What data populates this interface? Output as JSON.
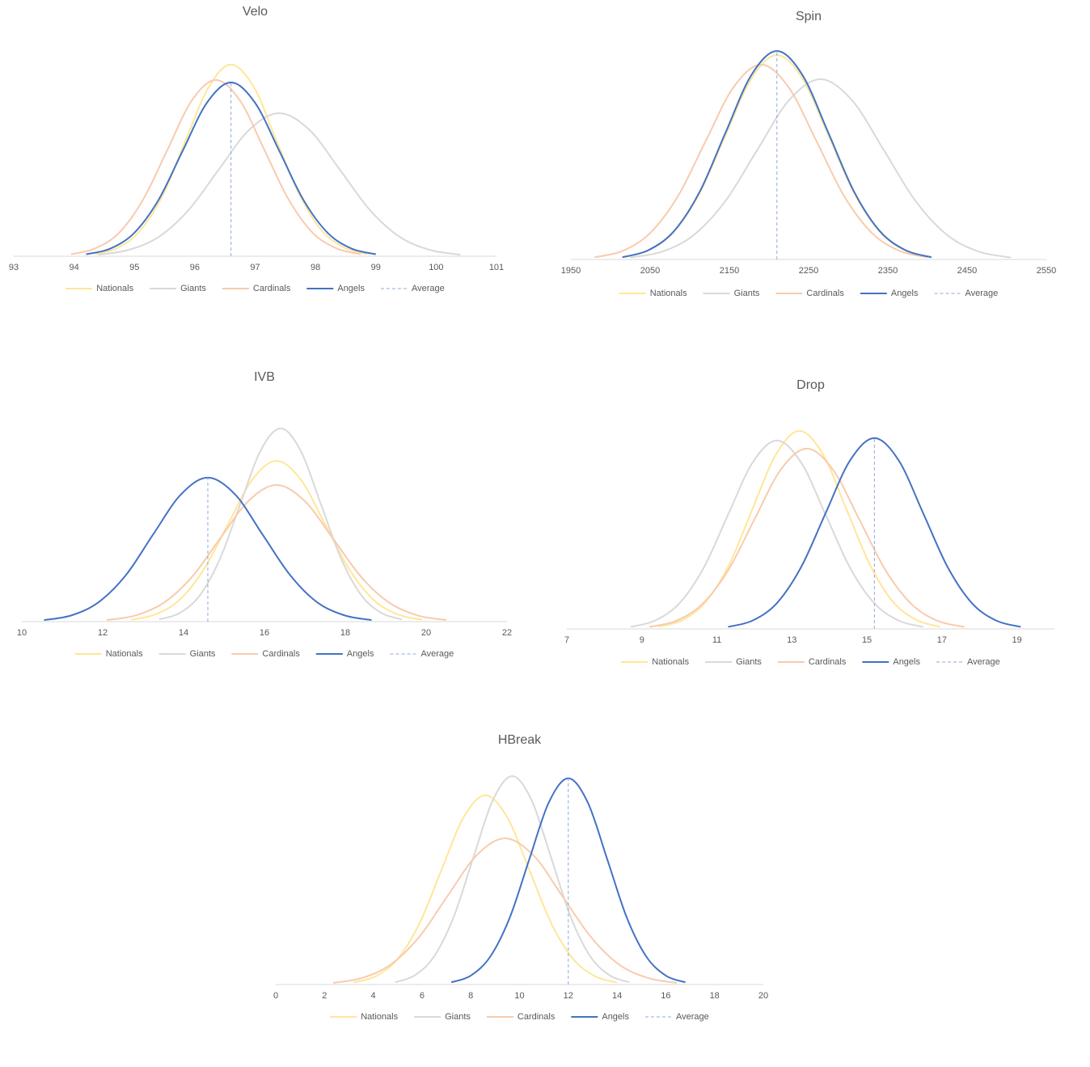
{
  "chart_data": [
    {
      "type": "line",
      "title": "Velo",
      "xlim": [
        93,
        101
      ],
      "xticks": [
        93,
        94,
        95,
        96,
        97,
        98,
        99,
        100,
        101
      ],
      "ylim": [
        0,
        100
      ],
      "series": [
        {
          "name": "Nationals",
          "color": "#ffe699",
          "x": [
            94.35,
            94.73,
            95.1,
            95.48,
            95.85,
            96.23,
            96.6,
            96.98,
            97.35,
            97.73,
            98.1,
            98.48,
            98.85
          ],
          "values": [
            1.0,
            3.8,
            11.6,
            27.8,
            51.9,
            75.5,
            85.6,
            75.5,
            51.9,
            27.8,
            11.6,
            3.8,
            1.0
          ]
        },
        {
          "name": "Giants",
          "color": "#d9d9d9",
          "x": [
            94.4,
            94.9,
            95.4,
            95.9,
            96.4,
            96.9,
            97.4,
            97.9,
            98.4,
            98.9,
            99.4,
            99.9,
            100.4
          ],
          "values": [
            0.7,
            2.8,
            8.6,
            20.7,
            38.8,
            56.4,
            63.9,
            56.4,
            38.8,
            20.7,
            8.6,
            2.8,
            0.7
          ]
        },
        {
          "name": "Cardinals",
          "color": "#f8cbad",
          "x": [
            93.95,
            94.35,
            94.75,
            95.15,
            95.55,
            95.95,
            96.35,
            96.75,
            97.15,
            97.55,
            97.95,
            98.35,
            98.75
          ],
          "values": [
            0.9,
            3.5,
            10.6,
            25.6,
            47.7,
            69.5,
            78.7,
            69.5,
            47.7,
            25.6,
            10.6,
            3.5,
            0.9
          ]
        },
        {
          "name": "Angels",
          "color": "#4472c4",
          "x": [
            94.2,
            94.6,
            95,
            95.4,
            95.8,
            96.2,
            96.6,
            97,
            97.4,
            97.8,
            98.2,
            98.6,
            99
          ],
          "values": [
            0.9,
            3.4,
            10.5,
            25.2,
            47.1,
            68.5,
            77.6,
            68.5,
            47.1,
            25.2,
            10.5,
            3.4,
            0.9
          ]
        },
        {
          "name": "Average",
          "color": "#8faadc",
          "dash": true,
          "x": [
            96.6,
            96.6
          ],
          "values": [
            0,
            77.6
          ]
        }
      ]
    },
    {
      "type": "line",
      "title": "Spin",
      "xlim": [
        1950,
        2550
      ],
      "xticks": [
        1950,
        2050,
        2150,
        2250,
        2350,
        2450,
        2550
      ],
      "ylim": [
        0,
        100
      ],
      "series": [
        {
          "name": "Nationals",
          "color": "#ffe699",
          "x": [
            2015,
            2047.5,
            2080,
            2112.5,
            2145,
            2177.5,
            2210,
            2242.5,
            2275,
            2307.5,
            2340,
            2372.5,
            2405
          ],
          "values": [
            1.0,
            4.0,
            12.4,
            29.6,
            55.4,
            80.6,
            91.3,
            80.6,
            55.4,
            29.6,
            12.4,
            4.0,
            1.0
          ]
        },
        {
          "name": "Giants",
          "color": "#d9d9d9",
          "x": [
            2025,
            2065,
            2105,
            2145,
            2185,
            2225,
            2265,
            2305,
            2345,
            2385,
            2425,
            2465,
            2505
          ],
          "values": [
            0.9,
            3.5,
            10.9,
            26.1,
            48.8,
            71.0,
            80.5,
            71.0,
            48.8,
            26.1,
            10.9,
            3.5,
            0.9
          ]
        },
        {
          "name": "Cardinals",
          "color": "#f8cbad",
          "x": [
            1980,
            2015,
            2050,
            2085,
            2120,
            2155,
            2190,
            2225,
            2260,
            2295,
            2330,
            2365,
            2400
          ],
          "values": [
            1.0,
            3.8,
            11.8,
            28.2,
            52.8,
            76.8,
            87,
            76.8,
            52.8,
            28.2,
            11.8,
            3.8,
            1.0
          ]
        },
        {
          "name": "Angels",
          "color": "#4472c4",
          "x": [
            2015,
            2047.5,
            2080,
            2112.5,
            2145,
            2177.5,
            2210,
            2242.5,
            2275,
            2307.5,
            2340,
            2372.5,
            2405
          ],
          "values": [
            1.0,
            4.1,
            12.6,
            30.2,
            56.5,
            82.2,
            93.1,
            82.2,
            56.5,
            30.2,
            12.6,
            4.1,
            1.0
          ]
        },
        {
          "name": "Average",
          "color": "#8faadc",
          "dash": true,
          "x": [
            2210,
            2210
          ],
          "values": [
            0,
            93.1
          ]
        }
      ]
    },
    {
      "type": "line",
      "title": "IVB",
      "xlim": [
        10,
        22
      ],
      "xticks": [
        10,
        12,
        14,
        16,
        18,
        20,
        22
      ],
      "ylim": [
        0,
        100
      ],
      "series": [
        {
          "name": "Nationals",
          "color": "#ffe699",
          "x": [
            12.7,
            13.3,
            13.9,
            14.5,
            15.1,
            15.7,
            16.3,
            16.9,
            17.5,
            18.1,
            18.7,
            19.3,
            19.9
          ],
          "values": [
            0.8,
            3.2,
            9.7,
            23.3,
            43.5,
            63.4,
            71.8,
            63.4,
            43.5,
            23.3,
            9.7,
            3.2,
            0.8
          ]
        },
        {
          "name": "Giants",
          "color": "#d9d9d9",
          "x": [
            13.4,
            13.9,
            14.4,
            14.9,
            15.4,
            15.9,
            16.4,
            16.9,
            17.4,
            17.9,
            18.4,
            18.9,
            19.4
          ],
          "values": [
            1.0,
            3.8,
            11.7,
            28.0,
            52.3,
            76.2,
            86.3,
            76.2,
            52.3,
            28.0,
            11.7,
            3.8,
            1.0
          ]
        },
        {
          "name": "Cardinals",
          "color": "#f8cbad",
          "x": [
            12.1,
            12.8,
            13.5,
            14.2,
            14.9,
            15.6,
            16.3,
            17,
            17.7,
            18.4,
            19.1,
            19.8,
            20.5
          ],
          "values": [
            0.7,
            2.7,
            8.3,
            19.8,
            37.0,
            53.8,
            61,
            53.8,
            37.0,
            19.8,
            8.3,
            2.7,
            0.7
          ]
        },
        {
          "name": "Angels",
          "color": "#4472c4",
          "x": [
            10.55,
            11.23,
            11.9,
            12.58,
            13.25,
            13.93,
            14.6,
            15.28,
            15.95,
            16.63,
            17.3,
            17.98,
            18.65
          ],
          "values": [
            0.7,
            2.8,
            8.7,
            20.9,
            39.0,
            56.7,
            64.3,
            56.7,
            39.0,
            20.9,
            8.7,
            2.8,
            0.7
          ]
        },
        {
          "name": "Average",
          "color": "#8faadc",
          "dash": true,
          "x": [
            14.6,
            14.6
          ],
          "values": [
            0,
            64.3
          ]
        }
      ]
    },
    {
      "type": "line",
      "title": "Drop",
      "xlim": [
        7,
        20
      ],
      "xticks": [
        7,
        9,
        11,
        13,
        15,
        17,
        19
      ],
      "ylim": [
        0,
        100
      ],
      "series": [
        {
          "name": "Nationals",
          "color": "#ffe699",
          "x": [
            9.45,
            10.08,
            10.7,
            11.33,
            11.95,
            12.58,
            13.2,
            13.83,
            14.45,
            15.08,
            15.7,
            16.33,
            16.95
          ],
          "values": [
            1.0,
            3.9,
            12.0,
            28.7,
            53.6,
            78.0,
            88.4,
            78.0,
            53.6,
            28.7,
            12.0,
            3.9,
            1.0
          ]
        },
        {
          "name": "Giants",
          "color": "#d9d9d9",
          "x": [
            8.7,
            9.35,
            10,
            10.65,
            11.3,
            11.95,
            12.6,
            13.25,
            13.9,
            14.55,
            15.2,
            15.85,
            16.5
          ],
          "values": [
            0.9,
            3.7,
            11.4,
            27.3,
            51.0,
            74.2,
            84.1,
            74.2,
            51.0,
            27.3,
            11.4,
            3.7,
            0.9
          ]
        },
        {
          "name": "Cardinals",
          "color": "#f8cbad",
          "x": [
            9.2,
            9.9,
            10.6,
            11.3,
            12,
            12.7,
            13.4,
            14.1,
            14.8,
            15.5,
            16.2,
            16.9,
            17.6
          ],
          "values": [
            0.9,
            3.5,
            10.9,
            26.1,
            48.8,
            71.0,
            80.5,
            71.0,
            48.8,
            26.1,
            10.9,
            3.5,
            0.9
          ]
        },
        {
          "name": "Angels",
          "color": "#4472c4",
          "x": [
            11.3,
            11.95,
            12.6,
            13.25,
            13.9,
            14.55,
            15.2,
            15.85,
            16.5,
            17.15,
            17.8,
            18.45,
            19.1
          ],
          "values": [
            0.9,
            3.7,
            11.5,
            27.7,
            51.7,
            75.2,
            85.2,
            75.2,
            51.7,
            27.7,
            11.5,
            3.7,
            0.9
          ]
        },
        {
          "name": "Average",
          "color": "#8faadc",
          "dash": true,
          "x": [
            15.2,
            15.2
          ],
          "values": [
            0,
            85.2
          ]
        }
      ]
    },
    {
      "type": "line",
      "title": "HBreak",
      "xlim": [
        0,
        20
      ],
      "xticks": [
        0,
        2,
        4,
        6,
        8,
        10,
        12,
        14,
        16,
        18,
        20
      ],
      "ylim": [
        0,
        100
      ],
      "series": [
        {
          "name": "Nationals",
          "color": "#ffe699",
          "x": [
            3.2,
            4.1,
            5,
            5.9,
            6.8,
            7.7,
            8.6,
            9.5,
            10.4,
            11.3,
            12.2,
            13.1,
            14
          ],
          "values": [
            0.9,
            3.7,
            11.4,
            27.4,
            51.2,
            74.6,
            84.5,
            74.6,
            51.2,
            27.4,
            11.4,
            3.7,
            0.9
          ]
        },
        {
          "name": "Giants",
          "color": "#d9d9d9",
          "x": [
            4.9,
            5.7,
            6.5,
            7.3,
            8.1,
            8.9,
            9.7,
            10.5,
            11.3,
            12.1,
            12.9,
            13.7,
            14.5
          ],
          "values": [
            1.0,
            4.1,
            12.6,
            30.2,
            56.5,
            82.2,
            93.1,
            82.2,
            56.5,
            30.2,
            12.6,
            4.1,
            1.0
          ]
        },
        {
          "name": "Cardinals",
          "color": "#f8cbad",
          "x": [
            2.35,
            3.53,
            4.7,
            5.88,
            7.05,
            8.23,
            9.4,
            10.58,
            11.75,
            12.93,
            14.1,
            15.28,
            16.45
          ],
          "values": [
            0.7,
            2.9,
            8.8,
            21.2,
            39.6,
            57.6,
            65.3,
            57.6,
            39.6,
            21.2,
            8.8,
            2.9,
            0.7
          ]
        },
        {
          "name": "Angels",
          "color": "#4472c4",
          "x": [
            7.2,
            8,
            8.8,
            9.6,
            10.4,
            11.2,
            12,
            12.8,
            13.6,
            14.4,
            15.2,
            16,
            16.8
          ],
          "values": [
            1.0,
            4.0,
            12.5,
            29.9,
            55.9,
            81.3,
            92.1,
            81.3,
            55.9,
            29.9,
            12.5,
            4.0,
            1.0
          ]
        },
        {
          "name": "Average",
          "color": "#8faadc",
          "dash": true,
          "x": [
            12,
            12
          ],
          "values": [
            0,
            92.1
          ]
        }
      ]
    }
  ]
}
